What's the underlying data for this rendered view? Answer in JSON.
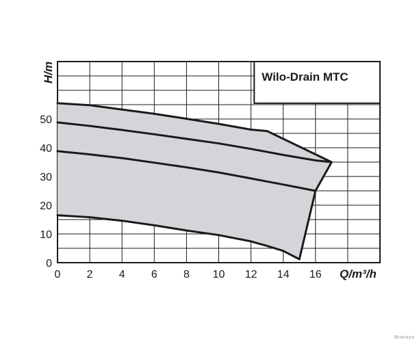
{
  "chart_data": {
    "type": "area",
    "title": "Wilo-Drain MTC",
    "xlabel": "Q/m³/h",
    "ylabel": "H/m",
    "xlim": [
      0,
      20
    ],
    "ylim": [
      0,
      70
    ],
    "xticks": [
      0,
      2,
      4,
      6,
      8,
      10,
      12,
      14,
      16
    ],
    "yticks": [
      0,
      10,
      20,
      30,
      40,
      50
    ],
    "grid": true,
    "colors": {
      "fill": "#d3d5d8",
      "line": "#1a1a1a",
      "grid": "#1a1a1a"
    },
    "series": [
      {
        "x": [
          0,
          2,
          4,
          6,
          8,
          10,
          12,
          13,
          17
        ],
        "y": [
          55.5,
          54.8,
          53.3,
          51.8,
          50.1,
          48.3,
          46.3,
          45.8,
          35
        ]
      },
      {
        "x": [
          0,
          2,
          4,
          6,
          8,
          10,
          12,
          14,
          16,
          17
        ],
        "y": [
          48.8,
          47.6,
          46.2,
          44.7,
          43.1,
          41.5,
          39.6,
          37.5,
          35.6,
          35
        ]
      },
      {
        "x": [
          0,
          2,
          4,
          6,
          8,
          10,
          12,
          14,
          16
        ],
        "y": [
          38.8,
          37.7,
          36.4,
          34.8,
          33.2,
          31.4,
          29.3,
          27.2,
          25
        ]
      },
      {
        "x": [
          0,
          2,
          4,
          6,
          8,
          10,
          12,
          13,
          14,
          15
        ],
        "y": [
          16.5,
          15.8,
          14.6,
          13.0,
          11.2,
          9.6,
          7.4,
          5.8,
          4.1,
          1.2
        ]
      }
    ],
    "envelope": {
      "x": [
        0,
        2,
        4,
        6,
        8,
        10,
        12,
        13,
        17,
        16,
        15,
        14,
        13,
        12,
        10,
        8,
        6,
        4,
        2,
        0
      ],
      "y": [
        55.5,
        54.8,
        53.3,
        51.8,
        50.1,
        48.3,
        46.3,
        45.8,
        35,
        25,
        1.2,
        4.1,
        5.8,
        7.4,
        9.6,
        11.2,
        13.0,
        14.6,
        15.8,
        16.5
      ]
    }
  },
  "watermark": "Bravaya"
}
